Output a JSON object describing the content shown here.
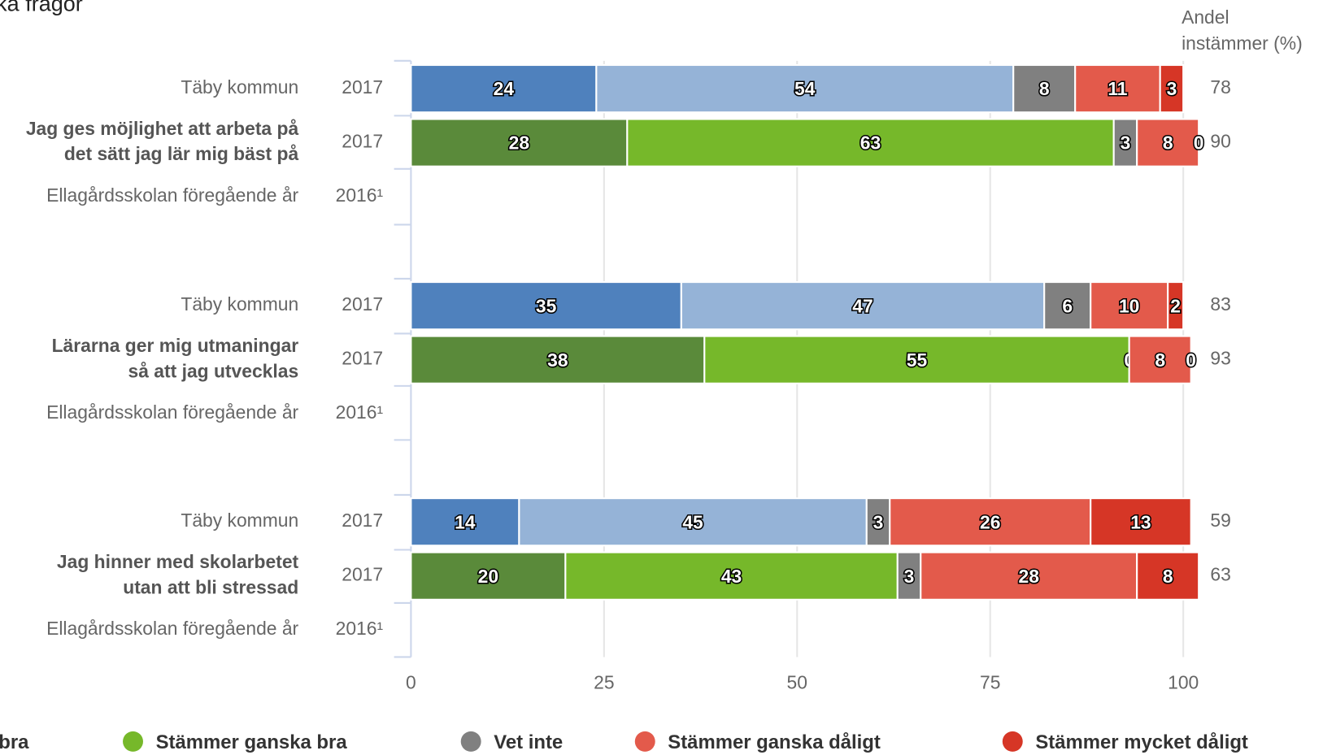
{
  "chart_data": {
    "type": "bar",
    "orientation": "horizontal",
    "stacked": true,
    "title": "ka frågor",
    "share_header": [
      "Andel",
      "instämmer (%)"
    ],
    "xlim": [
      0,
      100
    ],
    "xticks": [
      0,
      25,
      50,
      75,
      100
    ],
    "grid": true,
    "legend_position": "bottom",
    "legend": [
      {
        "name": "bra",
        "color": "#5a8a3a"
      },
      {
        "name": "Stämmer ganska bra",
        "color": "#76b82a"
      },
      {
        "name": "Vet inte",
        "color": "#808080"
      },
      {
        "name": "Stämmer ganska dåligt",
        "color": "#e35a4b"
      },
      {
        "name": "Stämmer mycket dåligt",
        "color": "#d63626"
      }
    ],
    "groups": [
      {
        "question": [
          "Jag ges möjlighet att arbeta på",
          "det sätt jag lär mig bäst på"
        ],
        "rows": [
          {
            "entity": "Täby kommun",
            "year": "2017",
            "values": [
              24,
              54,
              8,
              11,
              3
            ],
            "share": 78,
            "colors": [
              "#4f81bd",
              "#95b3d7",
              "#808080",
              "#e35a4b",
              "#d63626"
            ]
          },
          {
            "year": "2017",
            "values": [
              28,
              63,
              3,
              8,
              0
            ],
            "share": 90,
            "colors": [
              "#5a8a3a",
              "#76b82a",
              "#808080",
              "#e35a4b",
              "#d63626"
            ]
          },
          {
            "entity": "Ellagårdsskolan föregående år",
            "year": "2016¹"
          }
        ]
      },
      {
        "question": [
          "Lärarna ger mig utmaningar",
          "så att jag utvecklas"
        ],
        "rows": [
          {
            "entity": "Täby kommun",
            "year": "2017",
            "values": [
              35,
              47,
              6,
              10,
              2
            ],
            "share": 83,
            "colors": [
              "#4f81bd",
              "#95b3d7",
              "#808080",
              "#e35a4b",
              "#d63626"
            ]
          },
          {
            "year": "2017",
            "values": [
              38,
              55,
              0,
              8,
              0
            ],
            "share": 93,
            "colors": [
              "#5a8a3a",
              "#76b82a",
              "#808080",
              "#e35a4b",
              "#d63626"
            ]
          },
          {
            "entity": "Ellagårdsskolan föregående år",
            "year": "2016¹"
          }
        ]
      },
      {
        "question": [
          "Jag hinner med skolarbetet",
          "utan att bli stressad"
        ],
        "rows": [
          {
            "entity": "Täby kommun",
            "year": "2017",
            "values": [
              14,
              45,
              3,
              26,
              13
            ],
            "share": 59,
            "colors": [
              "#4f81bd",
              "#95b3d7",
              "#808080",
              "#e35a4b",
              "#d63626"
            ]
          },
          {
            "year": "2017",
            "values": [
              20,
              43,
              3,
              28,
              8
            ],
            "share": 63,
            "colors": [
              "#5a8a3a",
              "#76b82a",
              "#808080",
              "#e35a4b",
              "#d63626"
            ]
          },
          {
            "entity": "Ellagårdsskolan föregående år",
            "year": "2016¹"
          }
        ]
      }
    ]
  }
}
